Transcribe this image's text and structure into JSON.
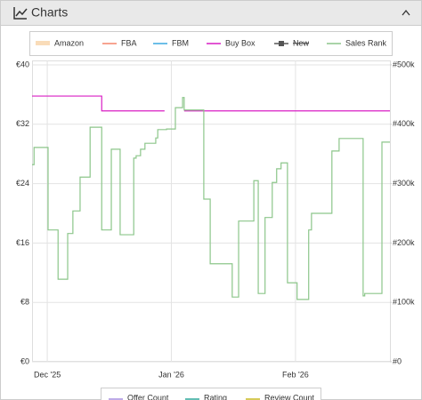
{
  "header": {
    "title": "Charts"
  },
  "chart_data": {
    "type": "step-line",
    "xlim": [
      -3.8,
      85.6
    ],
    "xticks": [
      {
        "value": 0,
        "label": "Dec '25"
      },
      {
        "value": 31,
        "label": "Jan '26"
      },
      {
        "value": 62,
        "label": "Feb '26"
      }
    ],
    "ylim": [
      0,
      40
    ],
    "yticks": [
      {
        "value": 0,
        "label": "€0"
      },
      {
        "value": 8,
        "label": "€8"
      },
      {
        "value": 16,
        "label": "€16"
      },
      {
        "value": 24,
        "label": "€24"
      },
      {
        "value": 32,
        "label": "€32"
      },
      {
        "value": 40,
        "label": "€40"
      }
    ],
    "y2lim": [
      0,
      500000
    ],
    "y2ticks": [
      {
        "value": 0,
        "label": "#0"
      },
      {
        "value": 100000,
        "label": "#100k"
      },
      {
        "value": 200000,
        "label": "#200k"
      },
      {
        "value": 300000,
        "label": "#300k"
      },
      {
        "value": 400000,
        "label": "#400k"
      },
      {
        "value": 500000,
        "label": "#500k"
      }
    ],
    "grid": true,
    "series": [
      {
        "name": "Amazon",
        "color": "#f5c48a",
        "x": [],
        "values": []
      },
      {
        "name": "FBA",
        "color": "#f4866b",
        "x": [],
        "values": []
      },
      {
        "name": "FBM",
        "color": "#3aa8e0",
        "x": [],
        "values": []
      },
      {
        "name": "Buy Box",
        "color": "#d91ec4",
        "x": [
          -3.8,
          13.6,
          29.3,
          34.2
        ],
        "values": [
          35.8,
          33.8,
          null,
          33.8
        ]
      },
      {
        "name": "New",
        "color": "#555555",
        "hidden": true,
        "x": [],
        "values": []
      },
      {
        "name": "Sales Rank",
        "color": "#8cc68a",
        "axis": "y2",
        "x": [
          -3.8,
          -3.3,
          0.2,
          2.7,
          5.1,
          6.4,
          8.2,
          10.7,
          13.6,
          16.0,
          18.2,
          21.6,
          22.2,
          23.3,
          24.4,
          27.1,
          27.6,
          29.8,
          32.0,
          33.8,
          34.2,
          39.1,
          40.7,
          46.2,
          47.8,
          51.6,
          52.7,
          54.4,
          56.2,
          57.3,
          58.4,
          60.0,
          62.4,
          65.3,
          66.0,
          71.1,
          72.9,
          78.9,
          79.3,
          83.6
        ],
        "values": [
          332000,
          361000,
          222000,
          139000,
          216000,
          254000,
          311000,
          395000,
          222000,
          358000,
          214000,
          343000,
          347000,
          358000,
          368000,
          377000,
          391000,
          392000,
          428000,
          445000,
          424000,
          274000,
          165000,
          109000,
          237000,
          305000,
          115000,
          243000,
          302000,
          325000,
          335000,
          133000,
          105000,
          222000,
          250000,
          355000,
          376000,
          111000,
          115000,
          370000
        ]
      }
    ],
    "lower_legend": [
      {
        "name": "Offer Count",
        "color": "#a98fe0"
      },
      {
        "name": "Rating",
        "color": "#2fa89a"
      },
      {
        "name": "Review Count",
        "color": "#c8b820"
      }
    ]
  }
}
